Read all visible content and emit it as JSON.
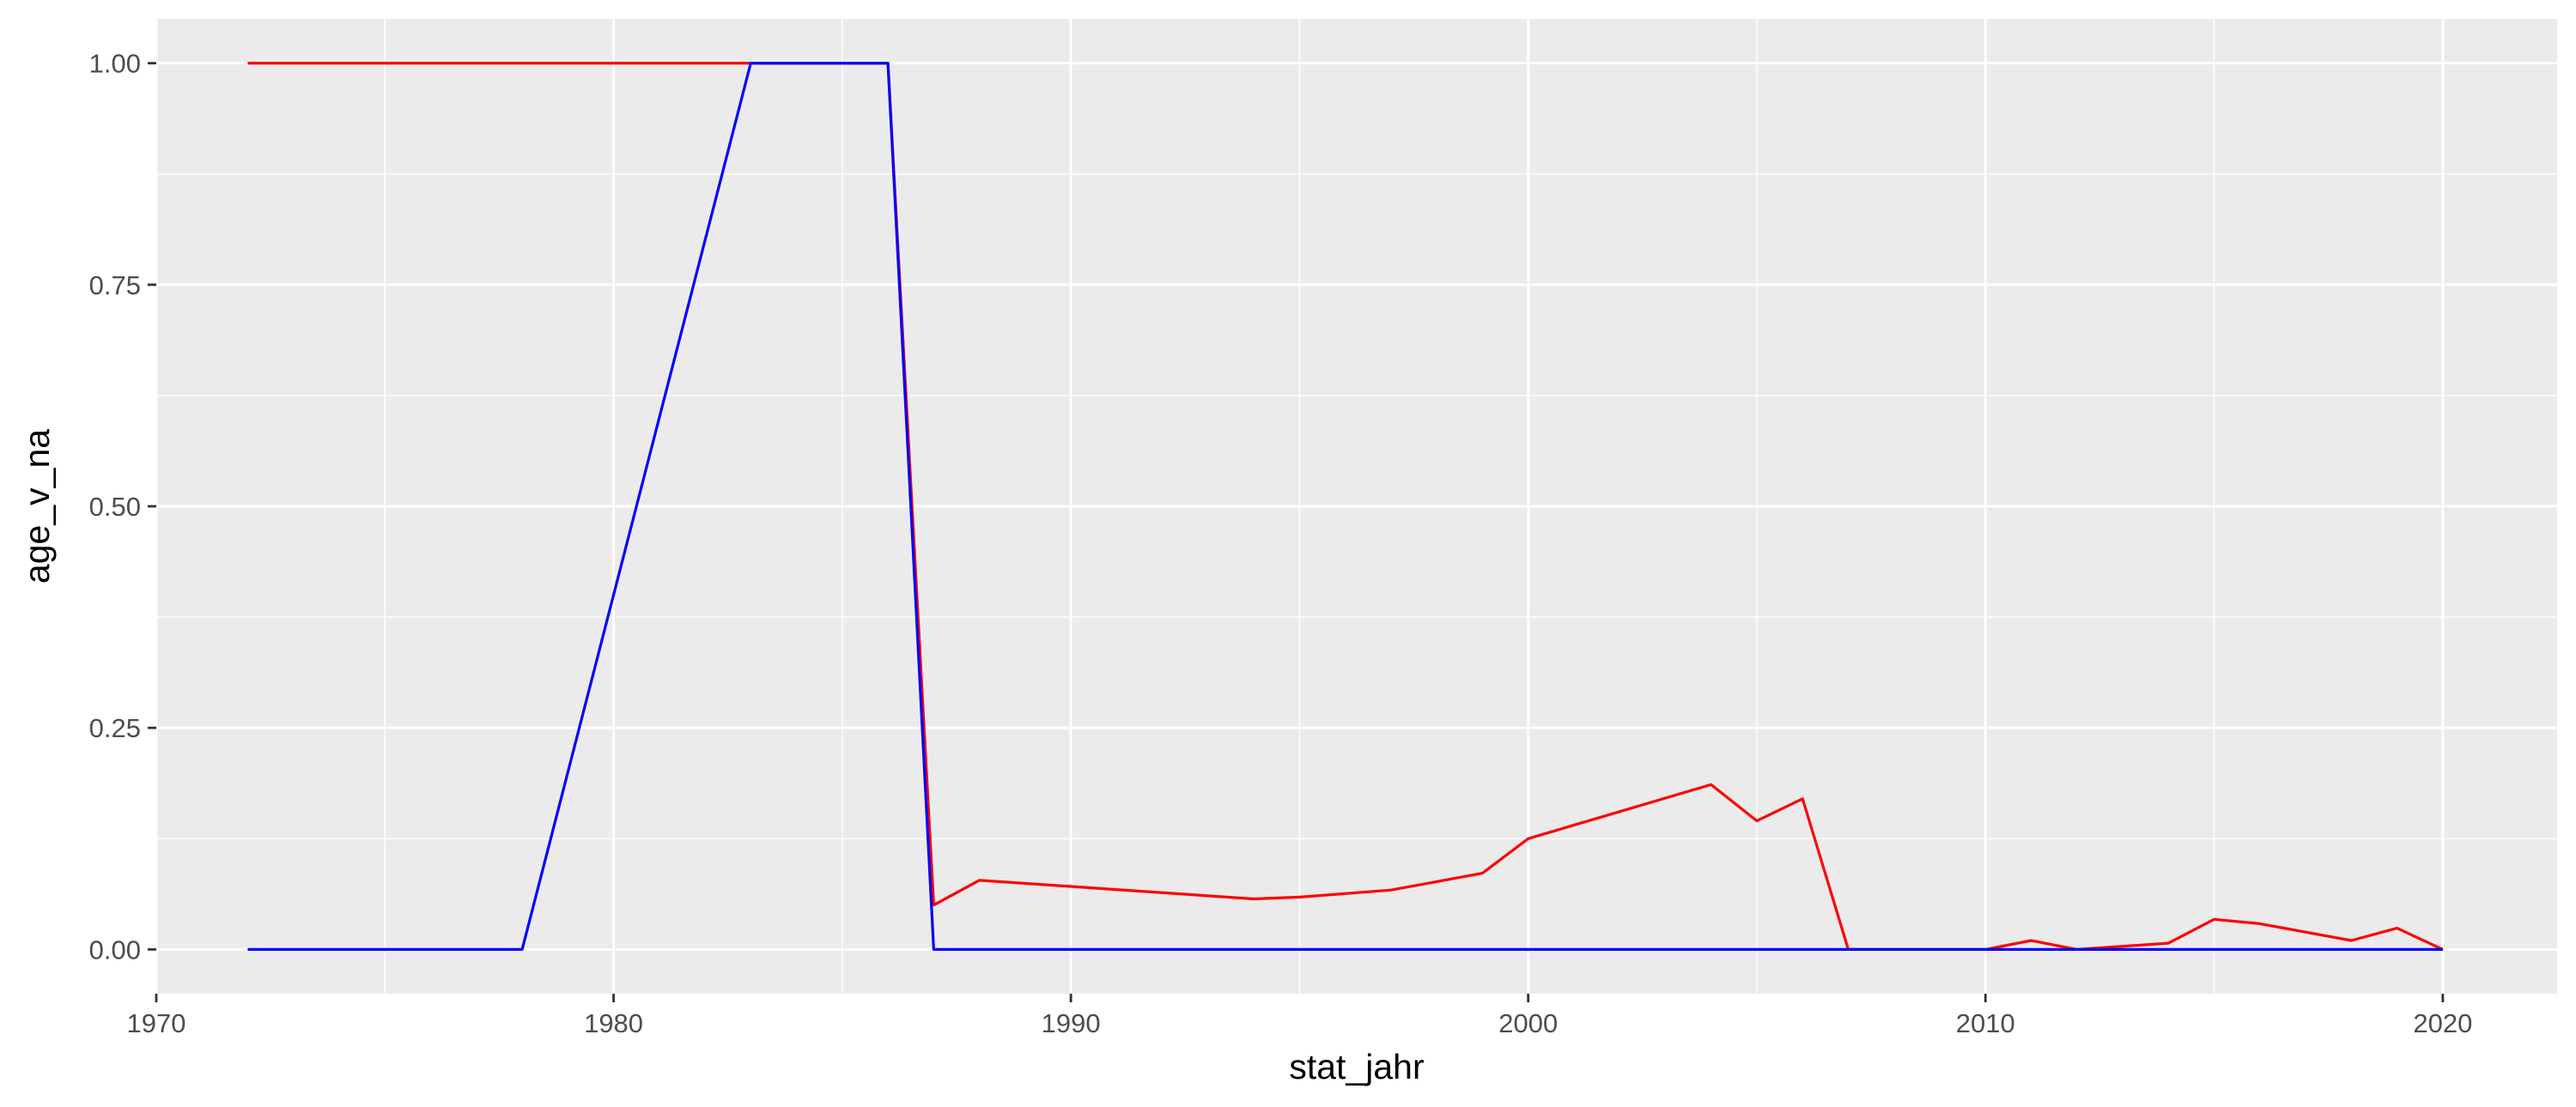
{
  "chart_data": {
    "type": "line",
    "title": "",
    "xlabel": "stat_jahr",
    "ylabel": "age_v_na",
    "xlim": [
      1970,
      2022.5
    ],
    "ylim": [
      -0.05,
      1.05
    ],
    "x_ticks": [
      1970,
      1980,
      1990,
      2000,
      2010,
      2020
    ],
    "x_tick_labels": [
      "1970",
      "1980",
      "1990",
      "2000",
      "2010",
      "2020"
    ],
    "y_ticks": [
      0,
      0.25,
      0.5,
      0.75,
      1.0
    ],
    "y_tick_labels": [
      "0.00",
      "0.25",
      "0.50",
      "0.75",
      "1.00"
    ],
    "grid": true,
    "legend": "none",
    "panel_background": "#ebebeb",
    "series": [
      {
        "color": "#ff0000",
        "x": [
          1972,
          1983,
          1986,
          1987,
          1988,
          1994,
          1995,
          1997,
          1999,
          2000,
          2004,
          2005,
          2006,
          2007,
          2010,
          2011,
          2012,
          2014,
          2015,
          2016,
          2018,
          2019,
          2020
        ],
        "y": [
          1.0,
          1.0,
          1.0,
          0.05,
          0.078,
          0.057,
          0.059,
          0.067,
          0.086,
          0.125,
          0.186,
          0.145,
          0.17,
          0.0,
          0.0,
          0.01,
          0.0,
          0.007,
          0.034,
          0.029,
          0.01,
          0.024,
          0.0
        ]
      },
      {
        "color": "#0000ff",
        "x": [
          1972,
          1978,
          1983,
          1986,
          1987,
          2020
        ],
        "y": [
          0.0,
          0.0,
          1.0,
          1.0,
          0.0,
          0.0
        ]
      }
    ]
  }
}
